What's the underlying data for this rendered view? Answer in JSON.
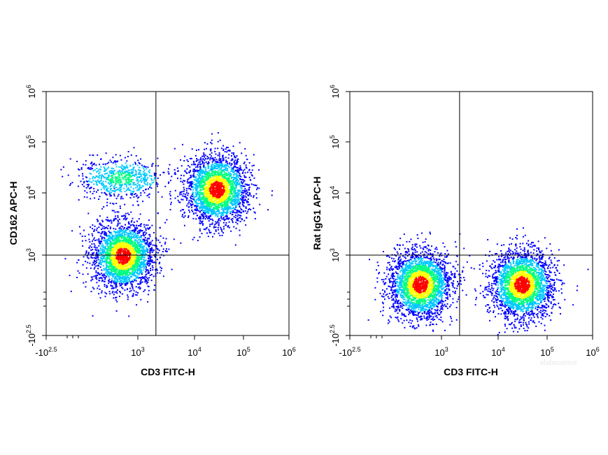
{
  "chart_data": [
    {
      "type": "scatter",
      "subtype": "flow-cytometry-density",
      "xlabel": "CD3 FITC-H",
      "ylabel": "CD162 APC-H",
      "x_ticks": [
        {
          "base": "-10",
          "exp": "2.5",
          "value": -316
        },
        {
          "base": "10",
          "exp": "3",
          "value": 1000
        },
        {
          "base": "10",
          "exp": "4",
          "value": 10000
        },
        {
          "base": "10",
          "exp": "5",
          "value": 100000
        },
        {
          "base": "10",
          "exp": "6",
          "value": 1000000
        }
      ],
      "y_ticks": [
        {
          "base": "-10",
          "exp": "2.5",
          "value": -316
        },
        {
          "base": "10",
          "exp": "3",
          "value": 1000
        },
        {
          "base": "10",
          "exp": "4",
          "value": 10000
        },
        {
          "base": "10",
          "exp": "5",
          "value": 100000
        },
        {
          "base": "10",
          "exp": "6",
          "value": 1000000
        }
      ],
      "gate": {
        "x": 2100,
        "y": 1000
      },
      "populations": [
        {
          "name": "CD3- CD162-",
          "x_center": 350,
          "y_center": 980,
          "density": "high"
        },
        {
          "name": "CD3- CD162+",
          "x_center": 300,
          "y_center": 20000,
          "density": "low"
        },
        {
          "name": "CD3+ CD162+",
          "x_center": 28000,
          "y_center": 12000,
          "density": "high"
        }
      ]
    },
    {
      "type": "scatter",
      "subtype": "flow-cytometry-density",
      "xlabel": "CD3 FITC-H",
      "ylabel": "Rat IgG1 APC-H",
      "x_ticks": [
        {
          "base": "-10",
          "exp": "2.5",
          "value": -316
        },
        {
          "base": "10",
          "exp": "3",
          "value": 1000
        },
        {
          "base": "10",
          "exp": "4",
          "value": 10000
        },
        {
          "base": "10",
          "exp": "5",
          "value": 100000
        },
        {
          "base": "10",
          "exp": "6",
          "value": 1000000
        }
      ],
      "y_ticks": [
        {
          "base": "-10",
          "exp": "2.5",
          "value": -316
        },
        {
          "base": "10",
          "exp": "3",
          "value": 1000
        },
        {
          "base": "10",
          "exp": "4",
          "value": 10000
        },
        {
          "base": "10",
          "exp": "5",
          "value": 100000
        },
        {
          "base": "10",
          "exp": "6",
          "value": 1000000
        }
      ],
      "gate": {
        "x": 2100,
        "y": 1000
      },
      "populations": [
        {
          "name": "CD3- isotype",
          "x_center": 220,
          "y_center": 90,
          "density": "high"
        },
        {
          "name": "CD3+ isotype",
          "x_center": 30000,
          "y_center": 90,
          "density": "high"
        }
      ]
    }
  ],
  "watermark": "elabscience",
  "colors": {
    "density_low": "#0000ff",
    "density_mid_low": "#00c8ff",
    "density_mid": "#00ff80",
    "density_mid_high": "#ffff00",
    "density_high": "#ff0000",
    "gate_line": "#000000"
  }
}
